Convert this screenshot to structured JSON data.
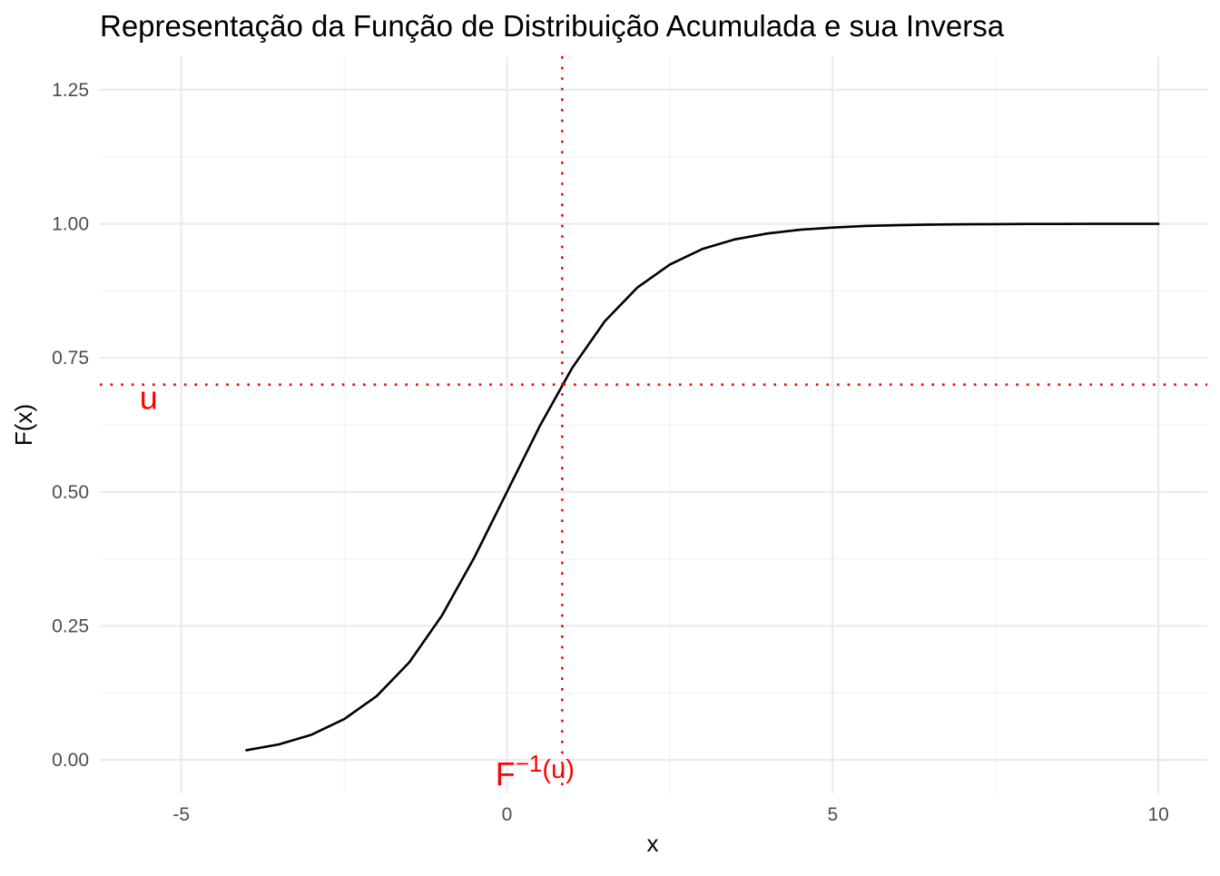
{
  "chart_data": {
    "type": "line",
    "title": "Representação da Função de Distribuição Acumulada e sua Inversa",
    "xlabel": "x",
    "ylabel": "F(x)",
    "xlim": [
      -6.25,
      10.75
    ],
    "ylim": [
      -0.0625,
      1.3125
    ],
    "x_ticks": [
      -5,
      0,
      5,
      10
    ],
    "x_tick_labels": [
      "-5",
      "0",
      "5",
      "10"
    ],
    "x_minor_ticks": [
      -2.5,
      2.5,
      7.5
    ],
    "y_ticks": [
      0,
      0.25,
      0.5,
      0.75,
      1.0,
      1.25
    ],
    "y_tick_labels": [
      "0.00",
      "0.25",
      "0.50",
      "0.75",
      "1.00",
      "1.25"
    ],
    "y_minor_ticks": [
      0.125,
      0.375,
      0.625,
      0.875,
      1.125
    ],
    "grid": true,
    "legend": "none",
    "series": [
      {
        "color": "#000000",
        "x": [
          -4,
          -3.5,
          -3,
          -2.5,
          -2,
          -1.5,
          -1,
          -0.5,
          0,
          0.5,
          1,
          1.5,
          2,
          2.5,
          3,
          3.5,
          4,
          4.5,
          5,
          5.5,
          6,
          6.5,
          7,
          7.5,
          8,
          8.5,
          9,
          9.5,
          10
        ],
        "y": [
          0.018,
          0.029,
          0.047,
          0.076,
          0.119,
          0.182,
          0.269,
          0.378,
          0.5,
          0.622,
          0.731,
          0.818,
          0.881,
          0.924,
          0.953,
          0.971,
          0.982,
          0.989,
          0.993,
          0.996,
          0.9975,
          0.9985,
          0.9991,
          0.9994,
          0.9997,
          0.9998,
          0.9999,
          0.99993,
          0.99995
        ]
      }
    ],
    "reference_lines": [
      {
        "orientation": "horizontal",
        "value": 0.7,
        "color": "#ff0000",
        "style": "dotted"
      },
      {
        "orientation": "vertical",
        "value": 0.847,
        "color": "#ff0000",
        "style": "dotted"
      }
    ],
    "annotations": [
      {
        "text": "u",
        "x": -5.5,
        "y": 0.675,
        "color": "#ff0000"
      },
      {
        "text": "F",
        "superscript": "−1",
        "suffix": "(u)",
        "x": 0.847,
        "y": -0.01,
        "color": "#ff0000"
      }
    ]
  }
}
